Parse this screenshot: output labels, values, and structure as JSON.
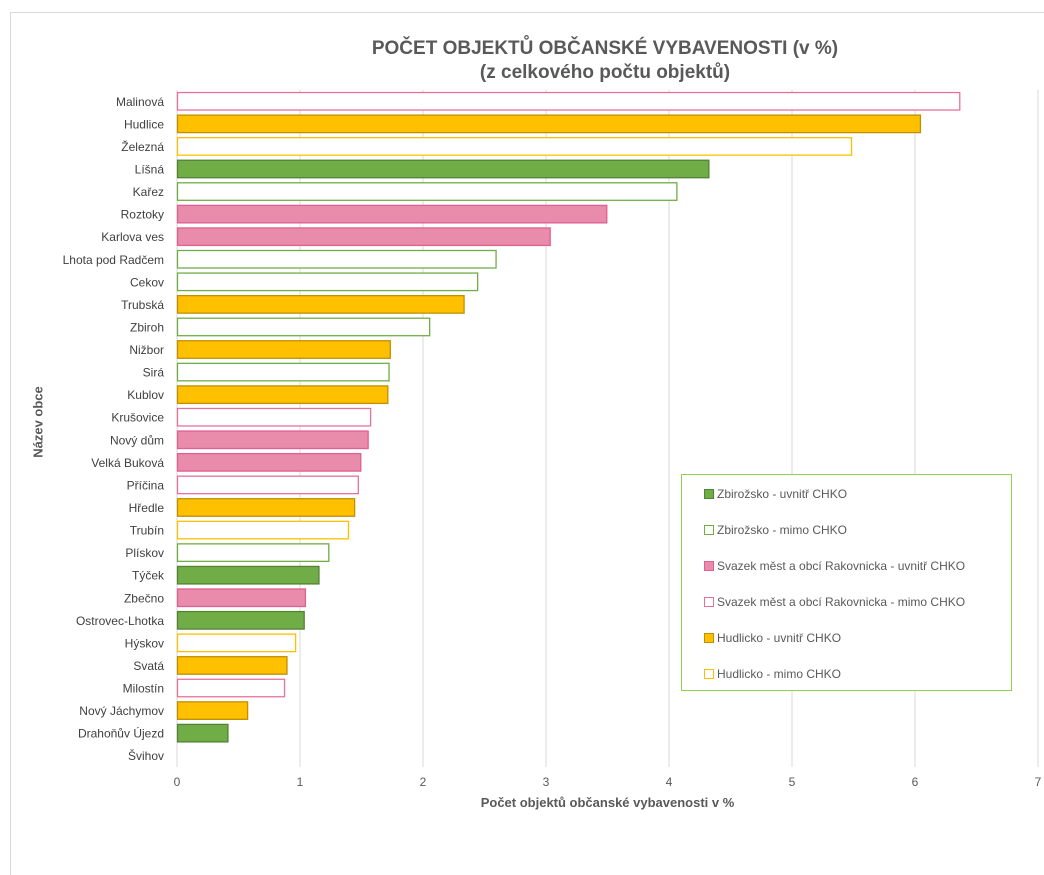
{
  "chart_data": {
    "type": "bar",
    "orientation": "horizontal",
    "title": "POČET OBJEKTŮ OBČANSKÉ VYBAVENOSTI (v %)",
    "subtitle": "(z celkového počtu objektů)",
    "xlabel": "Počet objektů občanské vybavenosti v %",
    "ylabel": "Název obce",
    "xlim": [
      0,
      7
    ],
    "xticks": [
      "0",
      "1",
      "2",
      "3",
      "4",
      "5",
      "6",
      "7"
    ],
    "grid": true,
    "legend_position": "bottom-right",
    "legend": [
      {
        "label": "Zbirožsko - uvnitř CHKO",
        "fill": "#70ad47",
        "stroke": "#548235"
      },
      {
        "label": "Zbirožsko - mimo CHKO",
        "fill": "#ffffff",
        "stroke": "#70ad47"
      },
      {
        "label": "Svazek měst a obcí Rakovnicka - uvnitř CHKO",
        "fill": "#e98bab",
        "stroke": "#e0608f"
      },
      {
        "label": "Svazek měst a obcí Rakovnicka - mimo CHKO",
        "fill": "#ffffff",
        "stroke": "#e8719b"
      },
      {
        "label": "Hudlicko - uvnitř CHKO",
        "fill": "#ffc000",
        "stroke": "#bf9000"
      },
      {
        "label": "Hudlicko - mimo CHKO",
        "fill": "#ffffff",
        "stroke": "#ffc000"
      }
    ],
    "bars": [
      {
        "name": "Malinová",
        "value": 6.36,
        "group": 3
      },
      {
        "name": "Hudlice",
        "value": 6.04,
        "group": 4
      },
      {
        "name": "Železná",
        "value": 5.48,
        "group": 5
      },
      {
        "name": "Líšná",
        "value": 4.32,
        "group": 0
      },
      {
        "name": "Kařez",
        "value": 4.06,
        "group": 1
      },
      {
        "name": "Roztoky",
        "value": 3.49,
        "group": 2
      },
      {
        "name": "Karlova ves",
        "value": 3.03,
        "group": 2
      },
      {
        "name": "Lhota pod Radčem",
        "value": 2.59,
        "group": 1
      },
      {
        "name": "Cekov",
        "value": 2.44,
        "group": 1
      },
      {
        "name": "Trubská",
        "value": 2.33,
        "group": 4
      },
      {
        "name": "Zbiroh",
        "value": 2.05,
        "group": 1
      },
      {
        "name": "Nižbor",
        "value": 1.73,
        "group": 4
      },
      {
        "name": "Sirá",
        "value": 1.72,
        "group": 1
      },
      {
        "name": "Kublov",
        "value": 1.71,
        "group": 4
      },
      {
        "name": "Krušovice",
        "value": 1.57,
        "group": 3
      },
      {
        "name": "Nový dům",
        "value": 1.55,
        "group": 2
      },
      {
        "name": "Velká Buková",
        "value": 1.49,
        "group": 2
      },
      {
        "name": "Příčina",
        "value": 1.47,
        "group": 3
      },
      {
        "name": "Hředle",
        "value": 1.44,
        "group": 4
      },
      {
        "name": "Trubín",
        "value": 1.39,
        "group": 5
      },
      {
        "name": "Plískov",
        "value": 1.23,
        "group": 1
      },
      {
        "name": "Týček",
        "value": 1.15,
        "group": 0
      },
      {
        "name": "Zbečno",
        "value": 1.04,
        "group": 2
      },
      {
        "name": "Ostrovec-Lhotka",
        "value": 1.03,
        "group": 0
      },
      {
        "name": "Hýskov",
        "value": 0.96,
        "group": 5
      },
      {
        "name": "Svatá",
        "value": 0.89,
        "group": 4
      },
      {
        "name": "Milostín",
        "value": 0.87,
        "group": 3
      },
      {
        "name": "Nový Jáchymov",
        "value": 0.57,
        "group": 4
      },
      {
        "name": "Drahoňův Újezd",
        "value": 0.41,
        "group": 0
      },
      {
        "name": "Švihov",
        "value": 0,
        "group": 0
      }
    ]
  }
}
